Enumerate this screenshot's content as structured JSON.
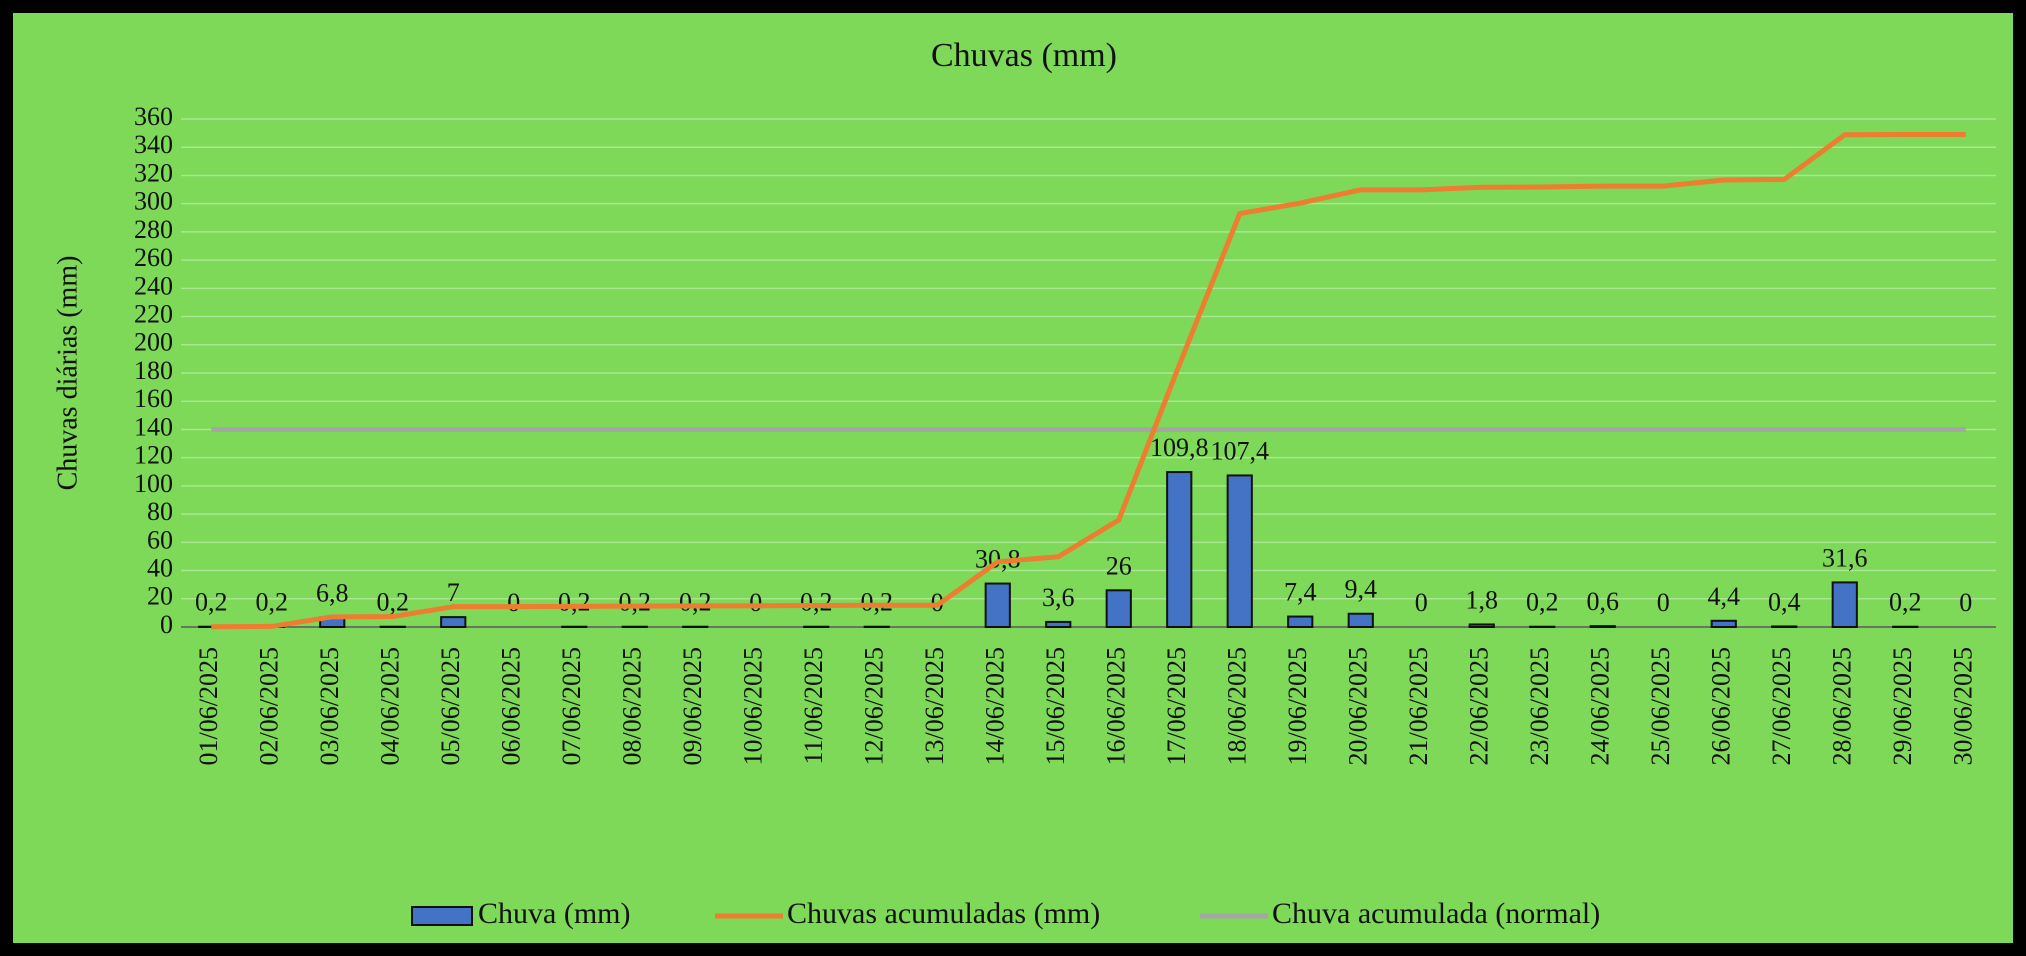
{
  "chart_data": {
    "type": "bar_line",
    "title": "Chuvas (mm)",
    "y_label": "Chuvas diárias (mm)",
    "categories": [
      "01/06/2025",
      "02/06/2025",
      "03/06/2025",
      "04/06/2025",
      "05/06/2025",
      "06/06/2025",
      "07/06/2025",
      "08/06/2025",
      "09/06/2025",
      "10/06/2025",
      "11/06/2025",
      "12/06/2025",
      "13/06/2025",
      "14/06/2025",
      "15/06/2025",
      "16/06/2025",
      "17/06/2025",
      "18/06/2025",
      "19/06/2025",
      "20/06/2025",
      "21/06/2025",
      "22/06/2025",
      "23/06/2025",
      "24/06/2025",
      "25/06/2025",
      "26/06/2025",
      "27/06/2025",
      "28/06/2025",
      "29/06/2025",
      "30/06/2025"
    ],
    "series": [
      {
        "name": "Chuva (mm)",
        "type": "bar",
        "color": "#4472c4",
        "values": [
          0.2,
          0.2,
          6.8,
          0.2,
          7,
          0,
          0.2,
          0.2,
          0.2,
          0,
          0.2,
          0.2,
          0,
          30.8,
          3.6,
          26,
          109.8,
          107.4,
          7.4,
          9.4,
          0,
          1.8,
          0.2,
          0.6,
          0,
          4.4,
          0.4,
          31.6,
          0.2,
          0
        ],
        "value_labels": [
          "0,2",
          "0,2",
          "6,8",
          "0,2",
          "7",
          "0",
          "0,2",
          "0,2",
          "0,2",
          "0",
          "0,2",
          "0,2",
          "0",
          "30,8",
          "3,6",
          "26",
          "109,8",
          "107,4",
          "7,4",
          "9,4",
          "0",
          "1,8",
          "0,2",
          "0,6",
          "0",
          "4,4",
          "0,4",
          "31,6",
          "0,2",
          "0"
        ]
      },
      {
        "name": "Chuvas acumuladas (mm)",
        "type": "line",
        "color": "#ed7d31",
        "values": [
          0.2,
          0.4,
          7.2,
          7.4,
          14.4,
          14.4,
          14.6,
          14.8,
          15.0,
          15.0,
          15.2,
          15.4,
          15.4,
          46.2,
          49.8,
          75.8,
          185.6,
          293.0,
          300.4,
          309.8,
          309.8,
          311.6,
          311.8,
          312.4,
          312.4,
          316.8,
          317.2,
          348.8,
          349.0,
          349.0
        ]
      },
      {
        "name": "Chuva acumulada (normal)",
        "type": "line",
        "color": "#a5a5a5",
        "values": [
          140,
          140,
          140,
          140,
          140,
          140,
          140,
          140,
          140,
          140,
          140,
          140,
          140,
          140,
          140,
          140,
          140,
          140,
          140,
          140,
          140,
          140,
          140,
          140,
          140,
          140,
          140,
          140,
          140,
          140
        ]
      }
    ],
    "ylim": [
      0,
      360
    ],
    "yticks": [
      0,
      20,
      40,
      60,
      80,
      100,
      120,
      140,
      160,
      180,
      200,
      220,
      240,
      260,
      280,
      300,
      320,
      340,
      360
    ],
    "grid": true
  }
}
